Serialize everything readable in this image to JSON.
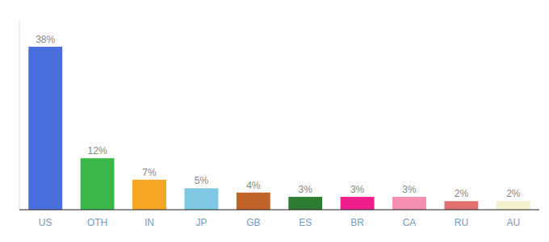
{
  "chart_data": {
    "type": "bar",
    "categories": [
      "US",
      "OTH",
      "IN",
      "JP",
      "GB",
      "ES",
      "BR",
      "CA",
      "RU",
      "AU"
    ],
    "values": [
      38,
      12,
      7,
      5,
      4,
      3,
      3,
      3,
      2,
      2
    ],
    "value_labels": [
      "38%",
      "12%",
      "7%",
      "5%",
      "4%",
      "3%",
      "3%",
      "3%",
      "2%",
      "2%"
    ],
    "colors": [
      "#4a6fdc",
      "#3cb84a",
      "#f5a623",
      "#7ec8e3",
      "#c0622a",
      "#2e7d32",
      "#f01e8c",
      "#f48fb1",
      "#e07070",
      "#f5f0d0"
    ],
    "ylim": [
      0,
      44
    ],
    "data_labels": true,
    "grid": false,
    "tick_labels": "x"
  }
}
